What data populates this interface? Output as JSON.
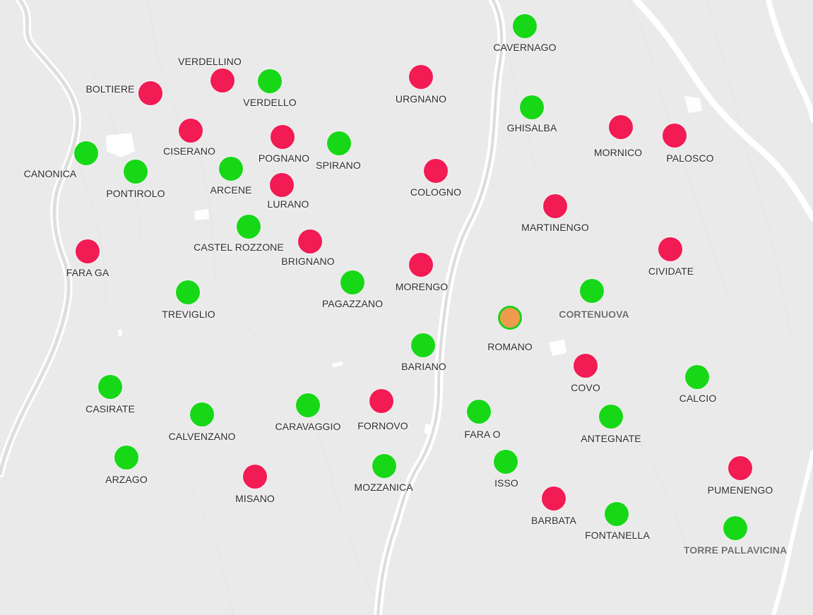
{
  "colors": {
    "background": "#eaeaea",
    "river": "#ffffff",
    "red": "#f21b54",
    "green": "#17d817",
    "orange": "#f09a4e"
  },
  "places": [
    {
      "id": "cavernago",
      "label": "CAVERNAGO",
      "status": "green"
    },
    {
      "id": "verdellino",
      "label": "VERDELLINO",
      "status": "red"
    },
    {
      "id": "verdello",
      "label": "VERDELLO",
      "status": "green"
    },
    {
      "id": "boltiere",
      "label": "BOLTIERE",
      "status": "red"
    },
    {
      "id": "urgnano",
      "label": "URGNANO",
      "status": "red"
    },
    {
      "id": "ghisalba",
      "label": "GHISALBA",
      "status": "green"
    },
    {
      "id": "mornico",
      "label": "MORNICO",
      "status": "red"
    },
    {
      "id": "palosco",
      "label": "PALOSCO",
      "status": "red"
    },
    {
      "id": "ciserano",
      "label": "CISERANO",
      "status": "red"
    },
    {
      "id": "pognano",
      "label": "POGNANO",
      "status": "red"
    },
    {
      "id": "spirano",
      "label": "SPIRANO",
      "status": "green"
    },
    {
      "id": "canonica",
      "label": "CANONICA",
      "status": "green"
    },
    {
      "id": "pontirolo",
      "label": "PONTIROLO",
      "status": "green"
    },
    {
      "id": "arcene",
      "label": "ARCENE",
      "status": "green"
    },
    {
      "id": "lurano",
      "label": "LURANO",
      "status": "red"
    },
    {
      "id": "cologno",
      "label": "COLOGNO",
      "status": "red"
    },
    {
      "id": "martinengo",
      "label": "MARTINENGO",
      "status": "red"
    },
    {
      "id": "castel-rozzone",
      "label": "CASTEL ROZZONE",
      "status": "green"
    },
    {
      "id": "brignano",
      "label": "BRIGNANO",
      "status": "red"
    },
    {
      "id": "fara-ga",
      "label": "FARA GA",
      "status": "red"
    },
    {
      "id": "cividate",
      "label": "CIVIDATE",
      "status": "red"
    },
    {
      "id": "morengo",
      "label": "MORENGO",
      "status": "red"
    },
    {
      "id": "pagazzano",
      "label": "PAGAZZANO",
      "status": "green"
    },
    {
      "id": "treviglio",
      "label": "TREVIGLIO",
      "status": "green"
    },
    {
      "id": "cortenuova",
      "label": "CORTENUOVA",
      "status": "green",
      "emphasis": true
    },
    {
      "id": "romano",
      "label": "ROMANO",
      "status": "orange"
    },
    {
      "id": "bariano",
      "label": "BARIANO",
      "status": "green"
    },
    {
      "id": "covo",
      "label": "COVO",
      "status": "red"
    },
    {
      "id": "calcio",
      "label": "CALCIO",
      "status": "green"
    },
    {
      "id": "casirate",
      "label": "CASIRATE",
      "status": "green"
    },
    {
      "id": "calvenzano",
      "label": "CALVENZANO",
      "status": "green"
    },
    {
      "id": "caravaggio",
      "label": "CARAVAGGIO",
      "status": "green"
    },
    {
      "id": "fornovo",
      "label": "FORNOVO",
      "status": "red"
    },
    {
      "id": "fara-o",
      "label": "FARA O",
      "status": "green"
    },
    {
      "id": "antegnate",
      "label": "ANTEGNATE",
      "status": "green"
    },
    {
      "id": "arzago",
      "label": "ARZAGO",
      "status": "green"
    },
    {
      "id": "misano",
      "label": "MISANO",
      "status": "red"
    },
    {
      "id": "mozzanica",
      "label": "MOZZANICA",
      "status": "green"
    },
    {
      "id": "isso",
      "label": "ISSO",
      "status": "green"
    },
    {
      "id": "barbata",
      "label": "BARBATA",
      "status": "red"
    },
    {
      "id": "fontanella",
      "label": "FONTANELLA",
      "status": "green"
    },
    {
      "id": "pumenengo",
      "label": "PUMENENGO",
      "status": "red"
    },
    {
      "id": "torre-pallavicina",
      "label": "TORRE PALLAVICINA",
      "status": "green",
      "emphasis": true
    }
  ]
}
